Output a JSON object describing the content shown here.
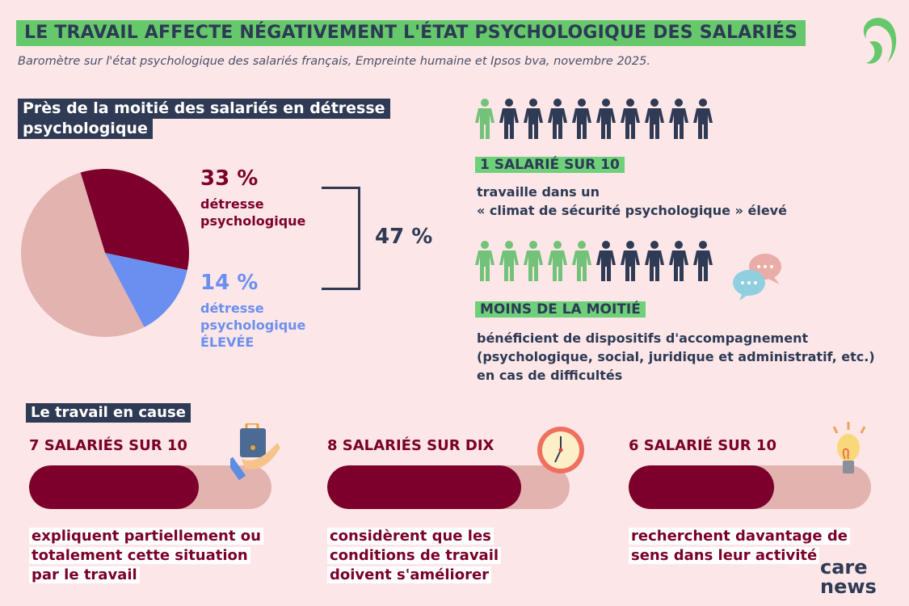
{
  "header": {
    "title": "LE TRAVAIL AFFECTE NÉGATIVEMENT L'ÉTAT PSYCHOLOGIQUE DES SALARIÉS",
    "subtitle": "Baromètre sur l'état psychologique des salariés français, Empreinte humaine et Ipsos bva, novembre 2025."
  },
  "section1": {
    "heading_line1": "Près de la moitié des salariés en détresse",
    "heading_line2": "psychologique",
    "total": "47 %"
  },
  "chart_data": {
    "type": "pie",
    "slices": [
      {
        "label": "détresse psychologique",
        "value_label": "33 %",
        "value": 33,
        "color": "#7c002b"
      },
      {
        "label": "détresse psychologique ÉLEVÉE",
        "value_label": "14 %",
        "value": 14,
        "color": "#6b8ff0"
      },
      {
        "label": "",
        "value": 53,
        "color": "#e3b3b0"
      }
    ]
  },
  "pie_labels": {
    "a_line1": "détresse",
    "a_line2": "psychologique",
    "b_line1": "détresse",
    "b_line2": "psychologique",
    "b_line3": "ÉLEVÉE"
  },
  "stat1": {
    "people_total": 10,
    "people_highlight": 1,
    "tag": "1 SALARIÉ SUR 10",
    "line1": "travaille dans un",
    "line2": "« climat de sécurité psychologique » élevé"
  },
  "stat2": {
    "people_total": 10,
    "people_highlight": 5,
    "tag": "MOINS DE LA MOITIÉ",
    "line1": "bénéficient de dispositifs d'accompagnement",
    "line2": "(psychologique, social, juridique et administratif, etc.)",
    "line3": "en cas de difficultés"
  },
  "section2": {
    "heading": "Le travail en cause"
  },
  "bars": [
    {
      "heading": "7 SALARIÉS SUR 10",
      "value": 0.7,
      "icon": "briefcase-hand-icon",
      "desc": "expliquent partiellement ou totalement cette situation par le travail"
    },
    {
      "heading": "8 SALARIÉS SUR DIX",
      "value": 0.8,
      "icon": "clock-icon",
      "desc": "considèrent que les conditions de travail doivent s'améliorer"
    },
    {
      "heading": "6 SALARIÉ SUR 10",
      "value": 0.6,
      "icon": "lightbulb-icon",
      "desc": "recherchent davantage de sens dans leur activité"
    }
  ],
  "logo": {
    "line1": "care",
    "line2": "news"
  },
  "colors": {
    "green": "#65c86a",
    "navy": "#2f3a54",
    "burgundy": "#7c002b",
    "blue": "#6b8ff0",
    "pink": "#e3b3b0",
    "bg": "#fce6e7"
  }
}
